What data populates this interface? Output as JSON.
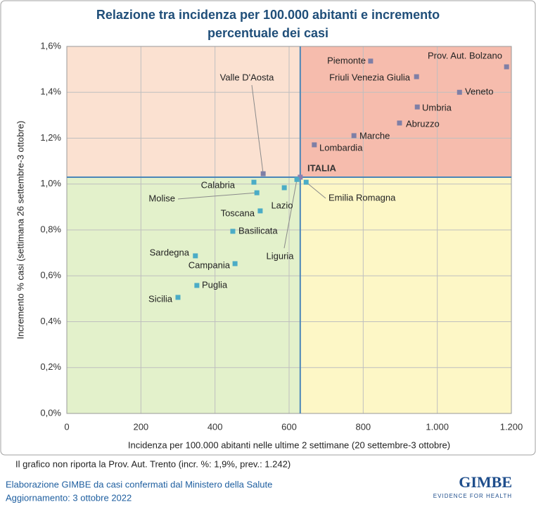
{
  "chart_data": {
    "type": "scatter",
    "title": "Relazione tra incidenza per 100.000 abitanti e incremento",
    "subtitle": "percentuale dei casi",
    "x_label": "Incidenza per 100.000 abitanti nelle ultime 2 settimane (20 settembre-3 ottobre)",
    "y_label": "Incremento % casi (settimana 26 settembre-3 ottobre)",
    "xlim": [
      0,
      1200
    ],
    "xticks": [
      0,
      200,
      400,
      600,
      800,
      {
        "value": 1000,
        "label": "1.000"
      },
      {
        "value": 1200,
        "label": "1.200"
      }
    ],
    "ylim": [
      0,
      1.6
    ],
    "yticks": [
      {
        "value": 0,
        "label": "0,0%"
      },
      {
        "value": 0.2,
        "label": "0,2%"
      },
      {
        "value": 0.4,
        "label": "0,4%"
      },
      {
        "value": 0.6,
        "label": "0,6%"
      },
      {
        "value": 0.8,
        "label": "0,8%"
      },
      {
        "value": 1.0,
        "label": "1,0%"
      },
      {
        "value": 1.2,
        "label": "1,2%"
      },
      {
        "value": 1.4,
        "label": "1,4%"
      },
      {
        "value": 1.6,
        "label": "1,6%"
      }
    ],
    "grid": true,
    "quadrant_colors": {
      "top_left": "#fbe1d1",
      "top_right": "#f6bcad",
      "bottom_left": "#e3f1cb",
      "bottom_right": "#fdf7c6"
    },
    "points": [
      {
        "name": "Prov. Aut. Bolzano",
        "x": 1187,
        "y": 1.511,
        "color": "#7f7fa6"
      },
      {
        "name": "Piemonte",
        "x": 820,
        "y": 1.536,
        "color": "#7f7fa6"
      },
      {
        "name": "Friuli Venezia Giulia",
        "x": 944,
        "y": 1.468,
        "color": "#7f7fa6"
      },
      {
        "name": "Veneto",
        "x": 1060,
        "y": 1.4,
        "color": "#7f7fa6"
      },
      {
        "name": "Umbria",
        "x": 946,
        "y": 1.336,
        "color": "#7f7fa6"
      },
      {
        "name": "Abruzzo",
        "x": 898,
        "y": 1.266,
        "color": "#7f7fa6"
      },
      {
        "name": "Marche",
        "x": 775,
        "y": 1.211,
        "color": "#7f7fa6"
      },
      {
        "name": "Lombardia",
        "x": 668,
        "y": 1.171,
        "color": "#7f7fa6"
      },
      {
        "name": "Valle D'Aosta",
        "x": 530,
        "y": 1.045,
        "color": "#7f7fa6"
      },
      {
        "name": "ITALIA",
        "x": 630,
        "y": 1.03,
        "color": "#8c7fb0"
      },
      {
        "name": "Calabria",
        "x": 505,
        "y": 1.008,
        "color": "#4bacc6"
      },
      {
        "name": "Liguria",
        "x": 621,
        "y": 1.02,
        "color": "#4bacc6"
      },
      {
        "name": "Emilia Romagna",
        "x": 646,
        "y": 1.008,
        "color": "#4bacc6"
      },
      {
        "name": "Lazio",
        "x": 587,
        "y": 0.984,
        "color": "#4bacc6"
      },
      {
        "name": "Molise",
        "x": 513,
        "y": 0.962,
        "color": "#4bacc6"
      },
      {
        "name": "Toscana",
        "x": 522,
        "y": 0.883,
        "color": "#4bacc6"
      },
      {
        "name": "Basilicata",
        "x": 448,
        "y": 0.794,
        "color": "#4bacc6"
      },
      {
        "name": "Sardegna",
        "x": 347,
        "y": 0.687,
        "color": "#4bacc6"
      },
      {
        "name": "Campania",
        "x": 454,
        "y": 0.653,
        "color": "#4bacc6"
      },
      {
        "name": "Puglia",
        "x": 351,
        "y": 0.558,
        "color": "#4bacc6"
      },
      {
        "name": "Sicilia",
        "x": 300,
        "y": 0.506,
        "color": "#4bacc6"
      }
    ],
    "note": "Il grafico non riporta la Prov. Aut. Trento (incr. %: 1,9%, prev.: 1.242)",
    "source": "Elaborazione GIMBE da casi confermati dal Ministero della Salute",
    "updated": "Aggiornamento: 3 ottobre 2022",
    "logo": "GIMBE",
    "logo_tagline": "EVIDENCE FOR HEALTH"
  }
}
